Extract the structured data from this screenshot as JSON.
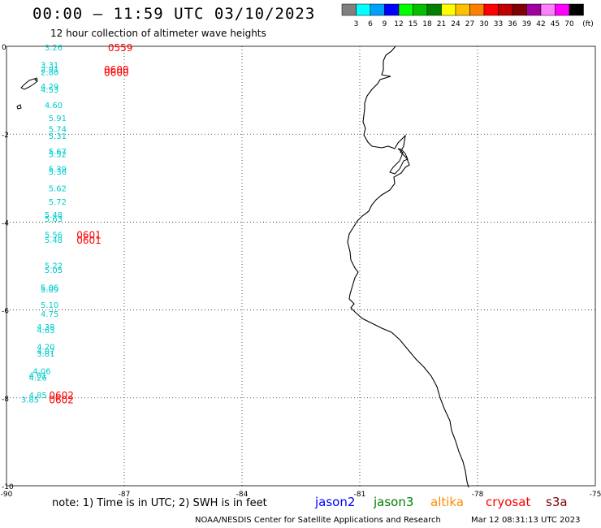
{
  "header": {
    "title": "00:00 – 11:59 UTC 03/10/2023",
    "subtitle": "12 hour collection of altimeter wave heights"
  },
  "color_scale": {
    "unit": "(ft)",
    "labels": [
      "3",
      "6",
      "9",
      "12",
      "15",
      "18",
      "21",
      "24",
      "27",
      "30",
      "33",
      "36",
      "39",
      "42",
      "45",
      "70"
    ],
    "colors": [
      "#808080",
      "#00ffff",
      "#00a0ff",
      "#0000ff",
      "#00ff00",
      "#00c000",
      "#008000",
      "#ffff00",
      "#ffc000",
      "#ff8000",
      "#ff0000",
      "#c00000",
      "#800000",
      "#a000a0",
      "#ff80ff",
      "#ff00ff",
      "#000000"
    ]
  },
  "map": {
    "x_ticks": [
      "-90",
      "-87",
      "-84",
      "-81",
      "-78",
      "-75"
    ],
    "y_ticks": [
      "0",
      "-2",
      "-4",
      "-6",
      "-8",
      "-10"
    ],
    "lon_range": [
      -90,
      -75
    ],
    "lat_range": [
      -10,
      0
    ],
    "grid": true
  },
  "wave_readings": [
    {
      "v": "3.26",
      "lon": -88.8,
      "lat": -0.02
    },
    {
      "v": "3.31",
      "lon": -88.9,
      "lat": -0.42
    },
    {
      "v": "2.91",
      "lon": -88.9,
      "lat": -0.52
    },
    {
      "v": "2.80",
      "lon": -88.9,
      "lat": -0.58
    },
    {
      "v": "4.29",
      "lon": -88.9,
      "lat": -0.91
    },
    {
      "v": "4.53",
      "lon": -88.9,
      "lat": -0.98
    },
    {
      "v": "4.60",
      "lon": -88.8,
      "lat": -1.33
    },
    {
      "v": "5.91",
      "lon": -88.7,
      "lat": -1.63
    },
    {
      "v": "5.74",
      "lon": -88.7,
      "lat": -1.88
    },
    {
      "v": "5.31",
      "lon": -88.7,
      "lat": -2.03
    },
    {
      "v": "5.67",
      "lon": -88.7,
      "lat": -2.38
    },
    {
      "v": "5.52",
      "lon": -88.7,
      "lat": -2.45
    },
    {
      "v": "5.39",
      "lon": -88.7,
      "lat": -2.78
    },
    {
      "v": "5.36",
      "lon": -88.7,
      "lat": -2.85
    },
    {
      "v": "5.62",
      "lon": -88.7,
      "lat": -3.23
    },
    {
      "v": "5.72",
      "lon": -88.7,
      "lat": -3.53
    },
    {
      "v": "5.48",
      "lon": -88.8,
      "lat": -3.83
    },
    {
      "v": "5.63",
      "lon": -88.8,
      "lat": -3.92
    },
    {
      "v": "5.56",
      "lon": -88.8,
      "lat": -4.28
    },
    {
      "v": "5.48",
      "lon": -88.8,
      "lat": -4.4
    },
    {
      "v": "5.22",
      "lon": -88.8,
      "lat": -4.98
    },
    {
      "v": "5.05",
      "lon": -88.8,
      "lat": -5.08
    },
    {
      "v": "5.06",
      "lon": -88.9,
      "lat": -5.48
    },
    {
      "v": "5.09",
      "lon": -88.9,
      "lat": -5.53
    },
    {
      "v": "5.10",
      "lon": -88.9,
      "lat": -5.88
    },
    {
      "v": "4.75",
      "lon": -88.9,
      "lat": -6.08
    },
    {
      "v": "4.38",
      "lon": -89.0,
      "lat": -6.38
    },
    {
      "v": "4.63",
      "lon": -89.0,
      "lat": -6.45
    },
    {
      "v": "4.20",
      "lon": -89.0,
      "lat": -6.83
    },
    {
      "v": "4.07",
      "lon": -89.0,
      "lat": -6.93
    },
    {
      "v": "3.81",
      "lon": -89.0,
      "lat": -6.99
    },
    {
      "v": "4.06",
      "lon": -89.1,
      "lat": -7.38
    },
    {
      "v": "4.01",
      "lon": -89.2,
      "lat": -7.48
    },
    {
      "v": "4.26",
      "lon": -89.2,
      "lat": -7.53
    },
    {
      "v": "4.85",
      "lon": -89.2,
      "lat": -7.93
    },
    {
      "v": "3.85",
      "lon": -89.4,
      "lat": -8.03
    }
  ],
  "time_marks": [
    {
      "t": "0559",
      "lon": -87.1,
      "lat": -0.02
    },
    {
      "t": "0600",
      "lon": -87.2,
      "lat": -0.52
    },
    {
      "t": "0600",
      "lon": -87.2,
      "lat": -0.58
    },
    {
      "t": "0601",
      "lon": -87.9,
      "lat": -4.28
    },
    {
      "t": "0601",
      "lon": -87.9,
      "lat": -4.4
    },
    {
      "t": "0602",
      "lon": -88.6,
      "lat": -7.93
    },
    {
      "t": "0602",
      "lon": -88.6,
      "lat": -8.03
    }
  ],
  "footer": {
    "note": "note:  1) Time is in UTC;  2) SWH is in feet",
    "credit": "NOAA/NESDIS Center for Satellite Applications and Research",
    "timestamp": "Mar 12 08:31:13 UTC 2023",
    "satellites": [
      {
        "name": "jason2",
        "color": "#0000ff"
      },
      {
        "name": "jason3",
        "color": "#008000"
      },
      {
        "name": "altika",
        "color": "#ff8c00"
      },
      {
        "name": "cryosat",
        "color": "#ff0000"
      },
      {
        "name": "s3a",
        "color": "#800000"
      }
    ]
  },
  "colors": {
    "reading": "#00cccc",
    "time": "#ff0000"
  }
}
